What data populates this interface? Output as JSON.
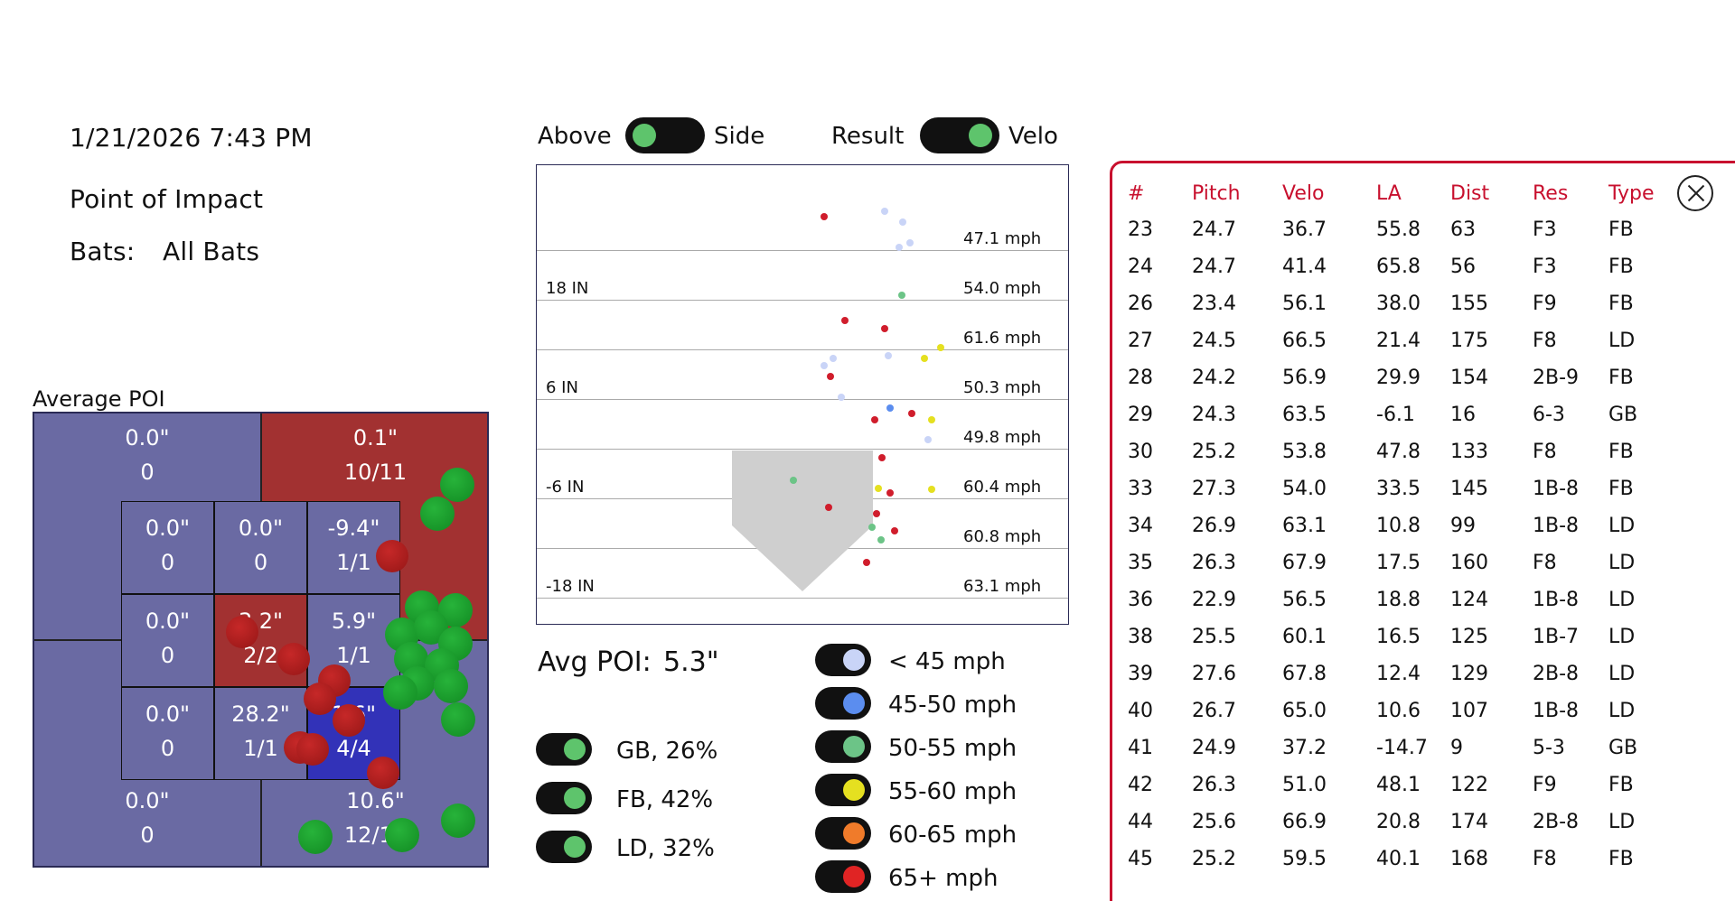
{
  "header": {
    "datetime": "1/21/2026 7:43 PM",
    "title": "Point of Impact",
    "bats_label": "Bats:",
    "bats_value": "All Bats"
  },
  "view_toggles": {
    "above_label": "Above",
    "side_label": "Side",
    "result_label": "Result",
    "velo_label": "Velo"
  },
  "average_poi": {
    "title": "Average POI",
    "zones": {
      "top_left": {
        "value": "0.0\"",
        "count": "0"
      },
      "top_right": {
        "value": "0.1\"",
        "count": "10/11"
      },
      "z1": {
        "value": "0.0\"",
        "count": "0"
      },
      "z2": {
        "value": "0.0\"",
        "count": "0"
      },
      "z3": {
        "value": "-9.4\"",
        "count": "1/1"
      },
      "z4": {
        "value": "0.0\"",
        "count": "0"
      },
      "z5": {
        "value": "3.2\"",
        "count": "2/2"
      },
      "z6": {
        "value": "5.9\"",
        "count": "1/1"
      },
      "z7": {
        "value": "0.0\"",
        "count": "0"
      },
      "z8": {
        "value": "28.2\"",
        "count": "1/1"
      },
      "z9": {
        "value": "1.6\"",
        "count": "4/4"
      },
      "bottom_left": {
        "value": "0.0\"",
        "count": "0"
      },
      "bottom_right": {
        "value": "10.6\"",
        "count": "12/12"
      }
    }
  },
  "side_view": {
    "depth_labels": [
      "18 IN",
      "6 IN",
      "-6 IN",
      "-18 IN"
    ],
    "row_mph": [
      "47.1 mph",
      "54.0 mph",
      "61.6 mph",
      "50.3 mph",
      "49.8 mph",
      "60.4 mph",
      "60.8 mph",
      "63.1 mph"
    ]
  },
  "avg_poi": {
    "label": "Avg POI:",
    "value": "5.3\""
  },
  "result_legend": [
    {
      "label": "GB, 26%"
    },
    {
      "label": "FB, 42%"
    },
    {
      "label": "LD, 32%"
    }
  ],
  "velo_legend": [
    {
      "label": "< 45 mph",
      "color": "#c9d4f7"
    },
    {
      "label": "45-50 mph",
      "color": "#5b8def"
    },
    {
      "label": "50-55 mph",
      "color": "#6cc487"
    },
    {
      "label": "55-60 mph",
      "color": "#e5e020"
    },
    {
      "label": "60-65 mph",
      "color": "#f07b2a"
    },
    {
      "label": "65+ mph",
      "color": "#e02424"
    }
  ],
  "table": {
    "columns": [
      "#",
      "Pitch",
      "Velo",
      "LA",
      "Dist",
      "Res",
      "Type"
    ],
    "rows": [
      [
        "23",
        "24.7",
        "36.7",
        "55.8",
        "63",
        "F3",
        "FB"
      ],
      [
        "24",
        "24.7",
        "41.4",
        "65.8",
        "56",
        "F3",
        "FB"
      ],
      [
        "26",
        "23.4",
        "56.1",
        "38.0",
        "155",
        "F9",
        "FB"
      ],
      [
        "27",
        "24.5",
        "66.5",
        "21.4",
        "175",
        "F8",
        "LD"
      ],
      [
        "28",
        "24.2",
        "56.9",
        "29.9",
        "154",
        "2B-9",
        "FB"
      ],
      [
        "29",
        "24.3",
        "63.5",
        "-6.1",
        "16",
        "6-3",
        "GB"
      ],
      [
        "30",
        "25.2",
        "53.8",
        "47.8",
        "133",
        "F8",
        "FB"
      ],
      [
        "33",
        "27.3",
        "54.0",
        "33.5",
        "145",
        "1B-8",
        "FB"
      ],
      [
        "34",
        "26.9",
        "63.1",
        "10.8",
        "99",
        "1B-8",
        "LD"
      ],
      [
        "35",
        "26.3",
        "67.9",
        "17.5",
        "160",
        "F8",
        "LD"
      ],
      [
        "36",
        "22.9",
        "56.5",
        "18.8",
        "124",
        "1B-8",
        "LD"
      ],
      [
        "38",
        "25.5",
        "60.1",
        "16.5",
        "125",
        "1B-7",
        "LD"
      ],
      [
        "39",
        "27.6",
        "67.8",
        "12.4",
        "129",
        "2B-8",
        "LD"
      ],
      [
        "40",
        "26.7",
        "65.0",
        "10.6",
        "107",
        "1B-8",
        "LD"
      ],
      [
        "41",
        "24.9",
        "37.2",
        "-14.7",
        "9",
        "5-3",
        "GB"
      ],
      [
        "42",
        "26.3",
        "51.0",
        "48.1",
        "122",
        "F9",
        "FB"
      ],
      [
        "44",
        "25.6",
        "66.9",
        "20.8",
        "174",
        "2B-8",
        "LD"
      ],
      [
        "45",
        "25.2",
        "59.5",
        "40.1",
        "168",
        "F8",
        "FB"
      ]
    ]
  },
  "colors": {
    "accent": "#c8102e",
    "zone_red": "#a23131",
    "zone_blue": "#3232b8",
    "zone_purple": "#6a6aa3",
    "toggle_knob": "#5ec46c"
  }
}
